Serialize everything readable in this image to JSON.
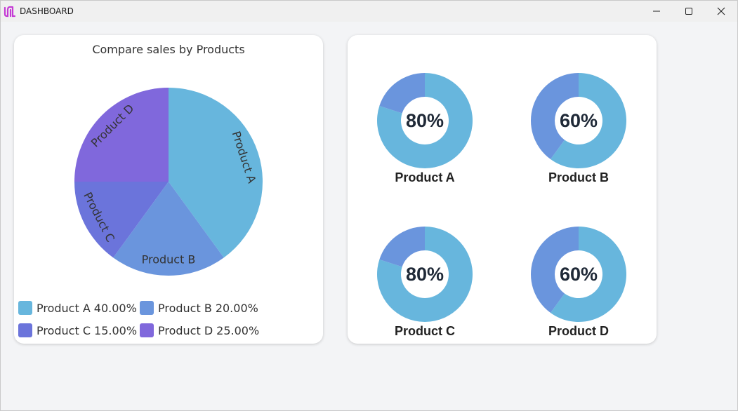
{
  "window": {
    "title": "DASHBOARD",
    "controls": {
      "minimize": "minimize-icon",
      "maximize": "maximize-icon",
      "close": "close-icon"
    }
  },
  "colors": {
    "product_a": "#67b6dd",
    "product_b": "#6a95dd",
    "product_c": "#6b74db",
    "product_d": "#8068dc",
    "donut_fill": "#67b6dd",
    "donut_rest": "#6a95dd",
    "logo": "#c43bd4"
  },
  "pie_card": {
    "title": "Compare sales by Products",
    "legend": [
      {
        "label": "Product A",
        "percent": "40.00%"
      },
      {
        "label": "Product B",
        "percent": "20.00%"
      },
      {
        "label": "Product C",
        "percent": "15.00%"
      },
      {
        "label": "Product D",
        "percent": "25.00%"
      }
    ]
  },
  "donut_card": {
    "items": [
      {
        "label": "Product A",
        "percent_text": "80%"
      },
      {
        "label": "Product B",
        "percent_text": "60%"
      },
      {
        "label": "Product C",
        "percent_text": "80%"
      },
      {
        "label": "Product D",
        "percent_text": "60%"
      }
    ]
  },
  "chart_data": [
    {
      "type": "pie",
      "title": "Compare sales by Products",
      "categories": [
        "Product A",
        "Product B",
        "Product C",
        "Product D"
      ],
      "values": [
        40,
        20,
        15,
        25
      ],
      "legend": "bottom"
    },
    {
      "type": "pie",
      "categories": [
        "Product A",
        "Product B",
        "Product C",
        "Product D"
      ],
      "values": [
        80,
        60,
        80,
        60
      ]
    }
  ]
}
